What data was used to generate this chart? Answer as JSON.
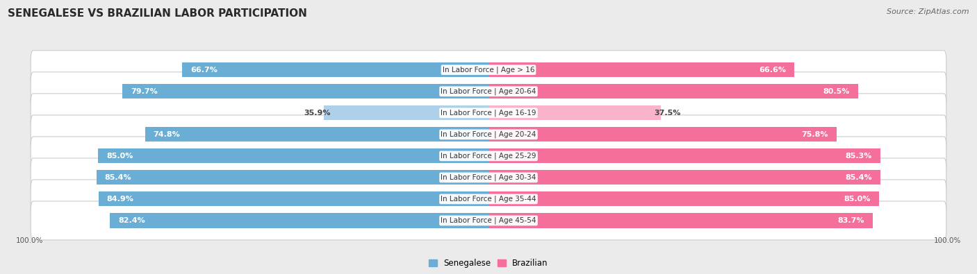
{
  "title": "SENEGALESE VS BRAZILIAN LABOR PARTICIPATION",
  "source": "Source: ZipAtlas.com",
  "categories": [
    "In Labor Force | Age > 16",
    "In Labor Force | Age 20-64",
    "In Labor Force | Age 16-19",
    "In Labor Force | Age 20-24",
    "In Labor Force | Age 25-29",
    "In Labor Force | Age 30-34",
    "In Labor Force | Age 35-44",
    "In Labor Force | Age 45-54"
  ],
  "senegalese_values": [
    66.7,
    79.7,
    35.9,
    74.8,
    85.0,
    85.4,
    84.9,
    82.4
  ],
  "brazilian_values": [
    66.6,
    80.5,
    37.5,
    75.8,
    85.3,
    85.4,
    85.0,
    83.7
  ],
  "senegalese_color": "#6aaed6",
  "senegalese_light_color": "#aed0e8",
  "brazilian_color": "#f4709a",
  "brazilian_light_color": "#f9b4cc",
  "background_color": "#ebebeb",
  "title_fontsize": 11,
  "source_fontsize": 8,
  "bar_label_fontsize": 8,
  "category_fontsize": 7.5,
  "legend_fontsize": 8.5,
  "axis_label_fontsize": 7.5
}
